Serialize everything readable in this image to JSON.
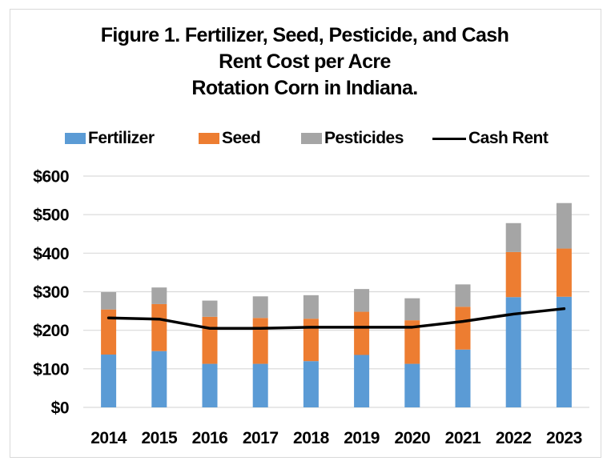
{
  "chart_data": {
    "type": "bar",
    "stacked": true,
    "title": "Figure 1. Fertilizer, Seed, Pesticide, and Cash Rent Cost per Acre Rotation Corn in Indiana.",
    "title_lines": [
      "Figure 1. Fertilizer, Seed, Pesticide, and Cash",
      "Rent Cost per Acre",
      "Rotation Corn in Indiana."
    ],
    "xlabel": "",
    "ylabel": "",
    "categories": [
      "2014",
      "2015",
      "2016",
      "2017",
      "2018",
      "2019",
      "2020",
      "2021",
      "2022",
      "2023"
    ],
    "series": [
      {
        "name": "Fertilizer",
        "type": "bar",
        "color": "#5b9bd5",
        "values": [
          137,
          146,
          113,
          113,
          120,
          136,
          113,
          150,
          286,
          287
        ]
      },
      {
        "name": "Seed",
        "type": "bar",
        "color": "#ed7d31",
        "values": [
          117,
          122,
          122,
          119,
          110,
          112,
          113,
          111,
          117,
          125
        ]
      },
      {
        "name": "Pesticides",
        "type": "bar",
        "color": "#a5a5a5",
        "values": [
          45,
          43,
          42,
          56,
          61,
          59,
          57,
          58,
          75,
          118
        ]
      },
      {
        "name": "Cash Rent",
        "type": "line",
        "color": "#000000",
        "values": [
          232,
          229,
          205,
          205,
          208,
          208,
          208,
          223,
          242,
          256
        ]
      }
    ],
    "ylim": [
      0,
      600
    ],
    "yticks": [
      0,
      100,
      200,
      300,
      400,
      500,
      600
    ],
    "ytick_labels": [
      "$0",
      "$100",
      "$200",
      "$300",
      "$400",
      "$500",
      "$600"
    ],
    "grid": true,
    "legend_position": "top"
  }
}
